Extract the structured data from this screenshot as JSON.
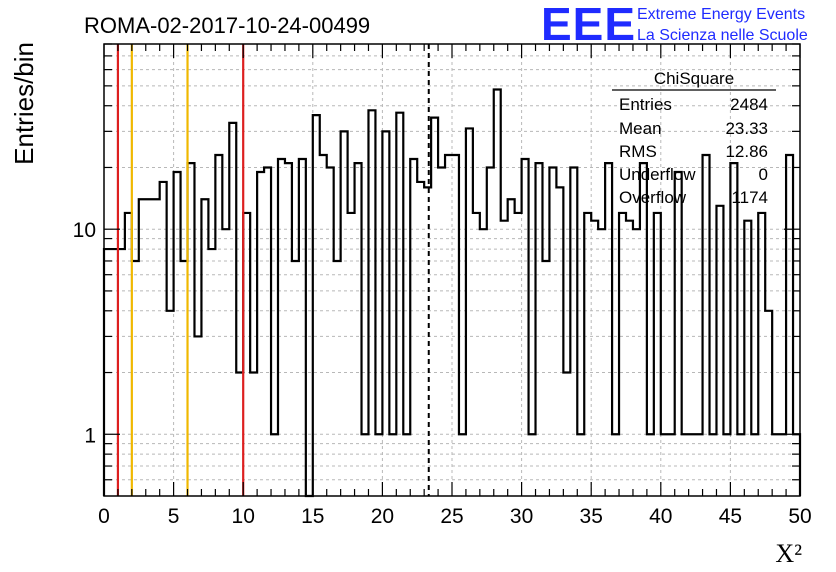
{
  "header": {
    "run_label": "ROMA-02-2017-10-24-00499"
  },
  "branding": {
    "logo": "EEE",
    "line1": "Extreme Energy Events",
    "line2": "La Scienza nelle Scuole",
    "color": "#1f2bff"
  },
  "stats_box": {
    "title": "ChiSquare",
    "rows": [
      {
        "label": "Entries",
        "value": "2484"
      },
      {
        "label": "Mean",
        "value": "23.33"
      },
      {
        "label": "RMS",
        "value": "12.86"
      },
      {
        "label": "Underflow",
        "value": "0"
      },
      {
        "label": "Overflow",
        "value": "1174"
      }
    ]
  },
  "chart_data": {
    "type": "histogram",
    "title": "ROMA-02-2017-10-24-00499",
    "xlabel": "X²",
    "ylabel": "Entries/bin",
    "xlim": [
      0,
      50
    ],
    "ylim": [
      0.5,
      80
    ],
    "yscale": "log",
    "grid": true,
    "bin_width": 0.5,
    "x_ticks": [
      "0",
      "5",
      "10",
      "15",
      "20",
      "25",
      "30",
      "35",
      "40",
      "45",
      "50"
    ],
    "y_ticks": [
      {
        "value": 1,
        "label": "1"
      },
      {
        "value": 10,
        "label": "10"
      }
    ],
    "values": [
      8,
      8,
      8,
      12,
      7,
      14,
      14,
      14,
      17,
      4,
      19,
      7,
      21,
      3,
      14,
      8,
      23,
      10,
      33,
      2,
      12,
      2,
      19,
      20,
      1,
      22,
      21,
      7,
      22,
      0,
      36,
      23,
      20,
      7,
      30,
      12,
      21,
      1,
      38,
      1,
      30,
      1,
      37,
      1,
      22,
      17,
      16,
      35,
      20,
      23,
      23,
      1,
      31,
      12,
      10,
      20,
      48,
      11,
      14,
      12,
      22,
      1,
      21,
      7,
      20,
      16,
      2,
      20,
      1,
      12,
      11,
      10,
      21,
      1,
      12,
      11,
      10,
      21,
      1,
      12,
      1,
      1,
      19,
      1,
      1,
      1,
      23,
      1,
      13,
      1,
      21,
      1,
      11,
      1,
      12,
      4,
      1,
      1,
      23,
      1
    ],
    "reference_lines": [
      {
        "x": 1,
        "color": "#dd1f1f",
        "style": "solid"
      },
      {
        "x": 2,
        "color": "#f0b800",
        "style": "solid"
      },
      {
        "x": 6,
        "color": "#f0b800",
        "style": "solid"
      },
      {
        "x": 10,
        "color": "#dd1f1f",
        "style": "solid"
      },
      {
        "x": 23.33,
        "color": "#000000",
        "style": "dashed"
      }
    ]
  }
}
